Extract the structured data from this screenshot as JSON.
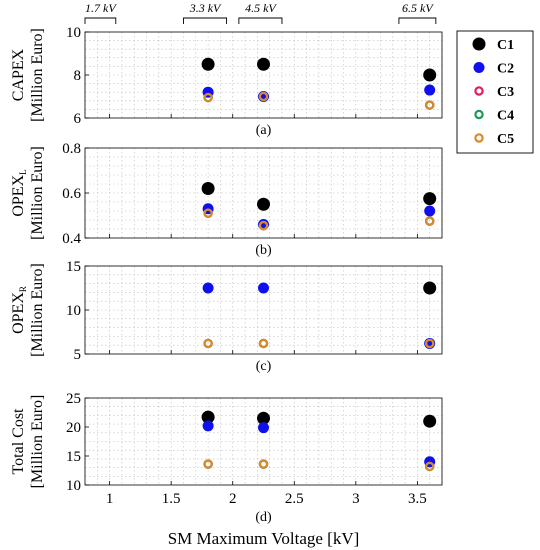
{
  "chart_data": {
    "type": "scatter",
    "xlabel": "SM Maximum Voltage [kV]",
    "xlim": [
      0.8,
      3.7
    ],
    "x_ticks": [
      "1",
      "1.5",
      "2",
      "2.5",
      "3",
      "3.5"
    ],
    "voltage_labels": [
      {
        "label": "1.7 kV",
        "x_from": 0.8,
        "x_to": 1.05
      },
      {
        "label": "3.3 kV",
        "x_from": 1.6,
        "x_to": 1.95
      },
      {
        "label": "4.5 kV",
        "x_from": 2.05,
        "x_to": 2.4
      },
      {
        "label": "6.5 kV",
        "x_from": 3.35,
        "x_to": 3.65
      }
    ],
    "legend": {
      "placement": "top-right",
      "entries": [
        {
          "name": "C1",
          "color": "#000000",
          "style": "filled-large"
        },
        {
          "name": "C2",
          "color": "#1010ee",
          "style": "filled"
        },
        {
          "name": "C3",
          "color": "#e0205a",
          "style": "ring"
        },
        {
          "name": "C4",
          "color": "#1a9a55",
          "style": "ring"
        },
        {
          "name": "C5",
          "color": "#d98a2b",
          "style": "ring"
        }
      ]
    },
    "subplots": [
      {
        "caption": "(a)",
        "ylabel_line1": "CAPEX",
        "ylabel_line1_sub": "",
        "ylabel_line2": "[Million Euro]",
        "ylim": [
          6,
          10
        ],
        "y_ticks": [
          "6",
          "8",
          "10"
        ],
        "series": [
          {
            "name": "C1",
            "x": [
              1.8,
              2.25,
              3.6
            ],
            "y": [
              8.5,
              8.5,
              8.0
            ]
          },
          {
            "name": "C2",
            "x": [
              1.8,
              2.25,
              3.6
            ],
            "y": [
              7.2,
              7.0,
              7.3
            ]
          },
          {
            "name": "C3",
            "x": [
              1.8,
              2.25,
              3.6
            ],
            "y": [
              6.95,
              7.0,
              6.6
            ]
          },
          {
            "name": "C4",
            "x": [
              1.8,
              2.25,
              3.6
            ],
            "y": [
              6.95,
              7.0,
              6.6
            ]
          },
          {
            "name": "C5",
            "x": [
              1.8,
              2.25,
              3.6
            ],
            "y": [
              6.95,
              7.0,
              6.6
            ]
          }
        ]
      },
      {
        "caption": "(b)",
        "ylabel_line1": "OPEX",
        "ylabel_line1_sub": "L",
        "ylabel_line2": "[Million Euro]",
        "ylim": [
          0.4,
          0.8
        ],
        "y_ticks": [
          "0.4",
          "0.6",
          "0.8"
        ],
        "series": [
          {
            "name": "C1",
            "x": [
              1.8,
              2.25,
              3.6
            ],
            "y": [
              0.62,
              0.55,
              0.575
            ]
          },
          {
            "name": "C2",
            "x": [
              1.8,
              2.25,
              3.6
            ],
            "y": [
              0.53,
              0.46,
              0.52
            ]
          },
          {
            "name": "C3",
            "x": [
              1.8,
              2.25,
              3.6
            ],
            "y": [
              0.51,
              0.455,
              0.475
            ]
          },
          {
            "name": "C4",
            "x": [
              1.8,
              2.25,
              3.6
            ],
            "y": [
              0.51,
              0.455,
              0.475
            ]
          },
          {
            "name": "C5",
            "x": [
              1.8,
              2.25,
              3.6
            ],
            "y": [
              0.51,
              0.455,
              0.475
            ]
          }
        ]
      },
      {
        "caption": "(c)",
        "ylabel_line1": "OPEX",
        "ylabel_line1_sub": "R",
        "ylabel_line2": "[Million Euro]",
        "ylim": [
          5,
          15
        ],
        "y_ticks": [
          "5",
          "10",
          "15"
        ],
        "series": [
          {
            "name": "C1",
            "x": [
              3.6
            ],
            "y": [
              12.5
            ]
          },
          {
            "name": "C2",
            "x": [
              1.8,
              2.25,
              3.6
            ],
            "y": [
              12.5,
              12.5,
              6.2
            ]
          },
          {
            "name": "C3",
            "x": [
              1.8,
              2.25,
              3.6
            ],
            "y": [
              6.2,
              6.2,
              6.2
            ]
          },
          {
            "name": "C4",
            "x": [
              1.8,
              2.25,
              3.6
            ],
            "y": [
              6.2,
              6.2,
              6.2
            ]
          },
          {
            "name": "C5",
            "x": [
              1.8,
              2.25,
              3.6
            ],
            "y": [
              6.2,
              6.2,
              6.2
            ]
          }
        ]
      },
      {
        "caption": "(d)",
        "ylabel_line1": "Total Cost",
        "ylabel_line1_sub": "",
        "ylabel_line2": "[Million Euro]",
        "ylim": [
          10,
          25
        ],
        "y_ticks": [
          "10",
          "15",
          "20",
          "25"
        ],
        "series": [
          {
            "name": "C1",
            "x": [
              1.8,
              2.25,
              3.6
            ],
            "y": [
              21.7,
              21.5,
              21.0
            ]
          },
          {
            "name": "C2",
            "x": [
              1.8,
              2.25,
              3.6
            ],
            "y": [
              20.2,
              19.9,
              14.0
            ]
          },
          {
            "name": "C3",
            "x": [
              1.8,
              2.25,
              3.6
            ],
            "y": [
              13.6,
              13.6,
              13.2
            ]
          },
          {
            "name": "C4",
            "x": [
              1.8,
              2.25,
              3.6
            ],
            "y": [
              13.6,
              13.6,
              13.2
            ]
          },
          {
            "name": "C5",
            "x": [
              1.8,
              2.25,
              3.6
            ],
            "y": [
              13.6,
              13.6,
              13.2
            ]
          }
        ]
      }
    ]
  }
}
